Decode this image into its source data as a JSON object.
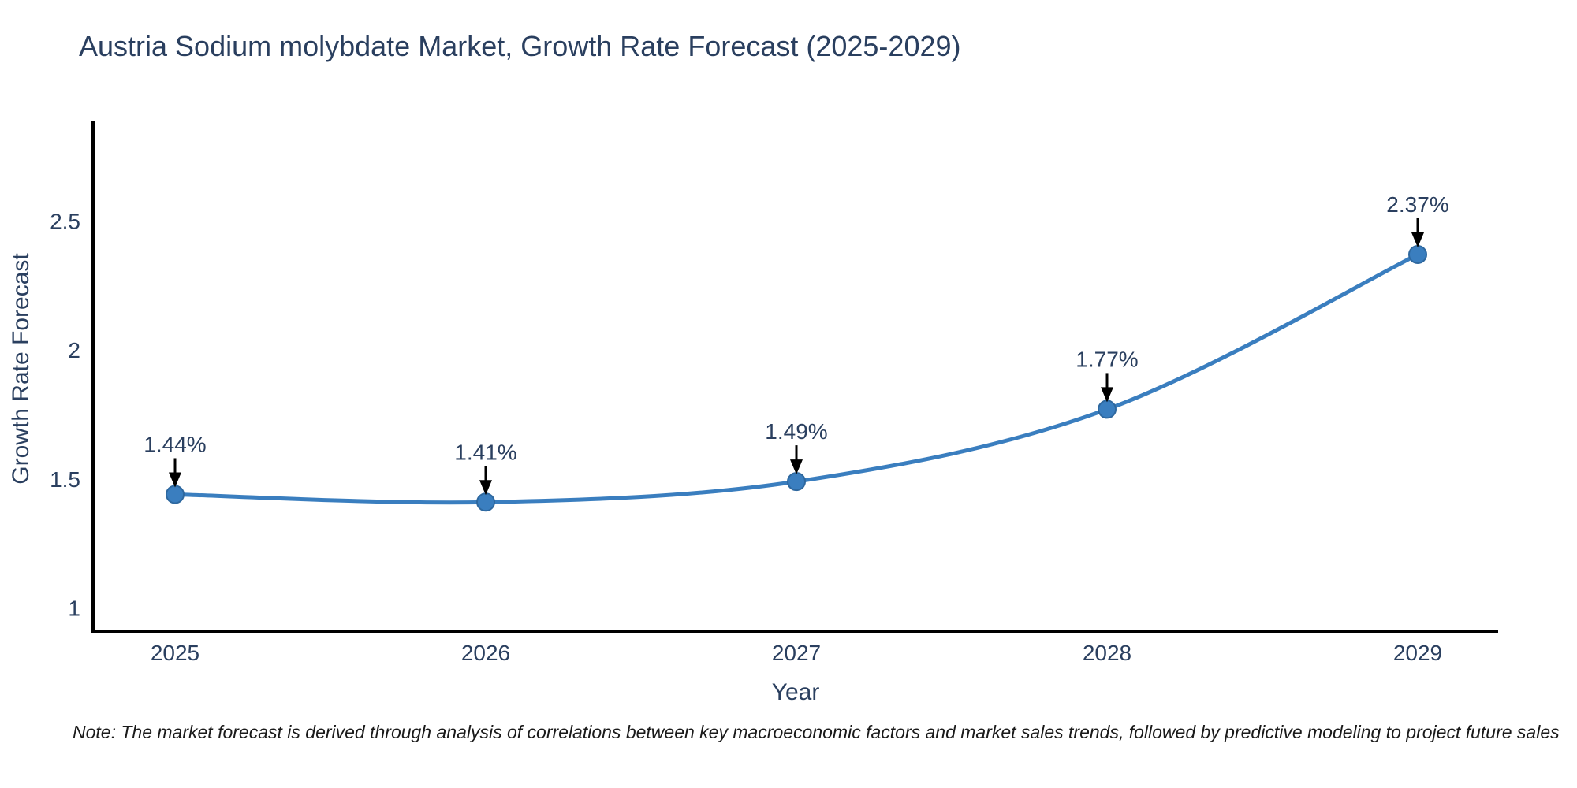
{
  "page": {
    "title": "Austria Sodium molybdate Market, Growth Rate Forecast (2025-2029)",
    "note": "Note: The market forecast is derived through analysis of correlations between key macroeconomic factors and market sales trends, followed by predictive modeling to project future sales"
  },
  "chart_data": {
    "type": "line",
    "title": "Austria Sodium molybdate Market, Growth Rate Forecast (2025-2029)",
    "xlabel": "Year",
    "ylabel": "Growth Rate Forecast",
    "categories": [
      "2025",
      "2026",
      "2027",
      "2028",
      "2029"
    ],
    "series": [
      {
        "name": "Growth Rate Forecast",
        "values": [
          1.44,
          1.41,
          1.49,
          1.77,
          2.37
        ]
      }
    ],
    "point_labels": [
      "1.44%",
      "1.41%",
      "1.49%",
      "1.77%",
      "2.37%"
    ],
    "yticks": [
      1,
      1.5,
      2,
      2.5
    ],
    "ylim": [
      0.91,
      2.88
    ],
    "grid": false,
    "legend_position": "none",
    "annotation_style": "value-label-with-down-arrow",
    "colors": {
      "line": "#3a7ebf",
      "marker_fill": "#3a7ebf",
      "marker_edge": "#2e689f",
      "arrow": "#000000",
      "axis": "#000000",
      "text": "#2a3f5f",
      "note_text": "#1a1a1a"
    }
  }
}
